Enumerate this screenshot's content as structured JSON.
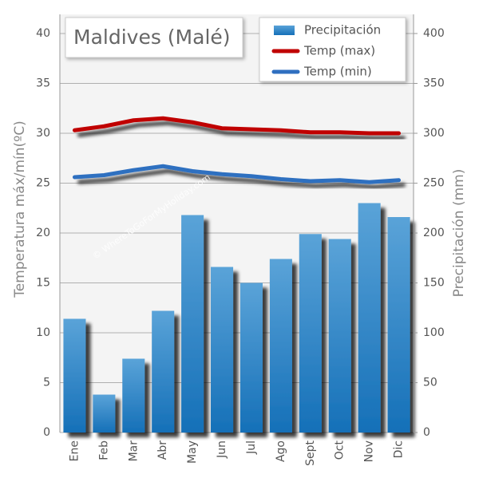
{
  "chart_data": {
    "type": "bar",
    "title": "Maldives (Malé)",
    "watermark": "© WhereToGoForMyHoliday.com",
    "ylabel": "Temperatura máx/mín(ºC)",
    "y2label": "Precipitación (mm)",
    "categories": [
      "Ene",
      "Feb",
      "Mar",
      "Abr",
      "May",
      "Jun",
      "Jul",
      "Ago",
      "Sept",
      "Oct",
      "Nov",
      "Dic"
    ],
    "series": [
      {
        "name": "Precipitación",
        "type": "bar",
        "axis": "y2",
        "color": "#2b7fc2",
        "values": [
          114,
          38,
          74,
          122,
          218,
          166,
          150,
          174,
          199,
          194,
          230,
          216
        ]
      },
      {
        "name": "Temp (max)",
        "type": "line",
        "color": "#c00000",
        "values": [
          30.3,
          30.7,
          31.3,
          31.5,
          31.1,
          30.5,
          30.4,
          30.3,
          30.1,
          30.1,
          30.0,
          30.0
        ]
      },
      {
        "name": "Temp (min)",
        "type": "line",
        "color": "#2f6fc0",
        "values": [
          25.6,
          25.8,
          26.3,
          26.7,
          26.2,
          25.9,
          25.7,
          25.4,
          25.2,
          25.3,
          25.1,
          25.3
        ]
      }
    ],
    "ylim": [
      0,
      40
    ],
    "yticks": [
      0,
      5,
      10,
      15,
      20,
      25,
      30,
      35,
      40
    ],
    "y2lim": [
      0,
      400
    ],
    "y2ticks": [
      0,
      50,
      100,
      150,
      200,
      250,
      300,
      350,
      400
    ],
    "grid": true
  }
}
